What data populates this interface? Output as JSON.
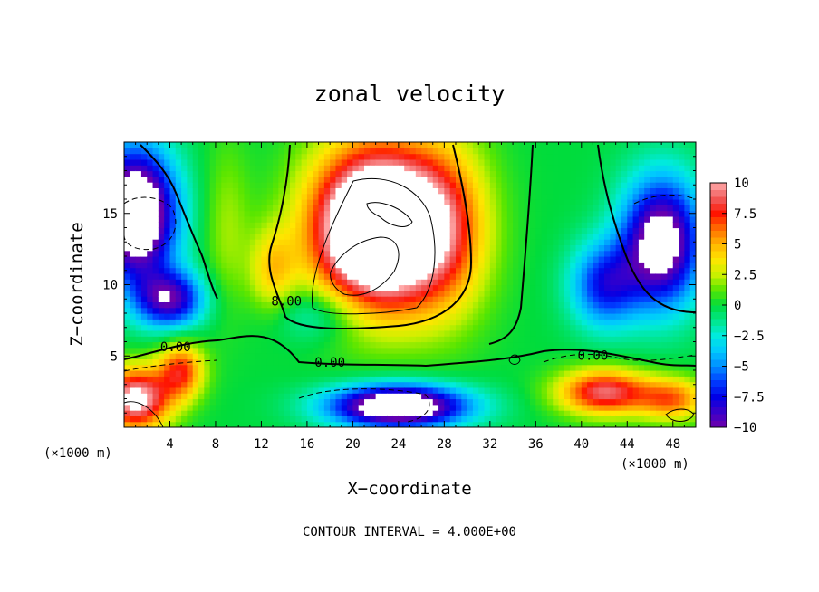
{
  "chart_data": {
    "type": "heatmap",
    "title": "zonal velocity",
    "xlabel": "X−coordinate",
    "ylabel": "Z−coordinate",
    "x_unit": "(×1000 m)",
    "x_unit_right": "(×1000 m)",
    "xlim": [
      0,
      50
    ],
    "ylim": [
      0,
      20
    ],
    "x_ticks": [
      4,
      8,
      12,
      16,
      20,
      24,
      28,
      32,
      36,
      40,
      44,
      48
    ],
    "x_tick_labels": [
      "4",
      "8",
      "12",
      "16",
      "20",
      "24",
      "28",
      "32",
      "36",
      "40",
      "44",
      "48"
    ],
    "y_ticks": [
      5,
      10,
      15
    ],
    "y_tick_labels": [
      "5",
      "10",
      "15"
    ],
    "colorbar": {
      "min": -10,
      "max": 10,
      "ticks": [
        10,
        7.5,
        5,
        2.5,
        0,
        -2.5,
        -5,
        -7.5,
        -10
      ],
      "tick_labels": [
        "10",
        "7.5",
        "5",
        "2.5",
        "0",
        "−2.5",
        "−5",
        "−7.5",
        "−10"
      ]
    },
    "contour_labels": [
      {
        "text": "0.00",
        "x": 4.5,
        "z": 5.6
      },
      {
        "text": "0.00",
        "x": 18,
        "z": 4.5
      },
      {
        "text": "0.00",
        "x": 41,
        "z": 5.0
      },
      {
        "text": "8.00",
        "x": 14.2,
        "z": 8.8
      }
    ],
    "contour_interval_text": "CONTOUR INTERVAL = 4.000E+00"
  }
}
